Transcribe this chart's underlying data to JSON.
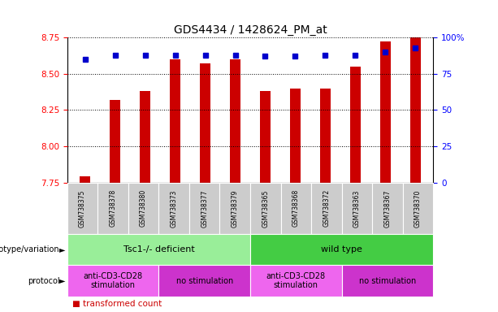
{
  "title": "GDS4434 / 1428624_PM_at",
  "samples": [
    "GSM738375",
    "GSM738378",
    "GSM738380",
    "GSM738373",
    "GSM738377",
    "GSM738379",
    "GSM738365",
    "GSM738368",
    "GSM738372",
    "GSM738363",
    "GSM738367",
    "GSM738370"
  ],
  "transformed_counts": [
    7.79,
    8.32,
    8.38,
    8.6,
    8.57,
    8.6,
    8.38,
    8.4,
    8.4,
    8.55,
    8.72,
    8.75
  ],
  "percentile_ranks": [
    85,
    88,
    88,
    88,
    88,
    88,
    87,
    87,
    88,
    88,
    90,
    93
  ],
  "ylim_left": [
    7.75,
    8.75
  ],
  "ylim_right": [
    0,
    100
  ],
  "yticks_left": [
    7.75,
    8.0,
    8.25,
    8.5,
    8.75
  ],
  "yticks_right": [
    0,
    25,
    50,
    75,
    100
  ],
  "bar_color": "#cc0000",
  "dot_color": "#0000cc",
  "tick_area_color": "#cccccc",
  "genotype_tsc_color": "#99ee99",
  "genotype_wt_color": "#44cc44",
  "protocol_anti_color": "#ee66ee",
  "protocol_no_color": "#cc33cc",
  "genotype_groups": [
    {
      "label": "Tsc1-/- deficient",
      "start": 0,
      "end": 5
    },
    {
      "label": "wild type",
      "start": 6,
      "end": 11
    }
  ],
  "protocol_groups": [
    {
      "label": "anti-CD3-CD28\nstimulation",
      "start": 0,
      "end": 2,
      "color": "#ee66ee"
    },
    {
      "label": "no stimulation",
      "start": 3,
      "end": 5,
      "color": "#cc33cc"
    },
    {
      "label": "anti-CD3-CD28\nstimulation",
      "start": 6,
      "end": 8,
      "color": "#ee66ee"
    },
    {
      "label": "no stimulation",
      "start": 9,
      "end": 11,
      "color": "#cc33cc"
    }
  ]
}
